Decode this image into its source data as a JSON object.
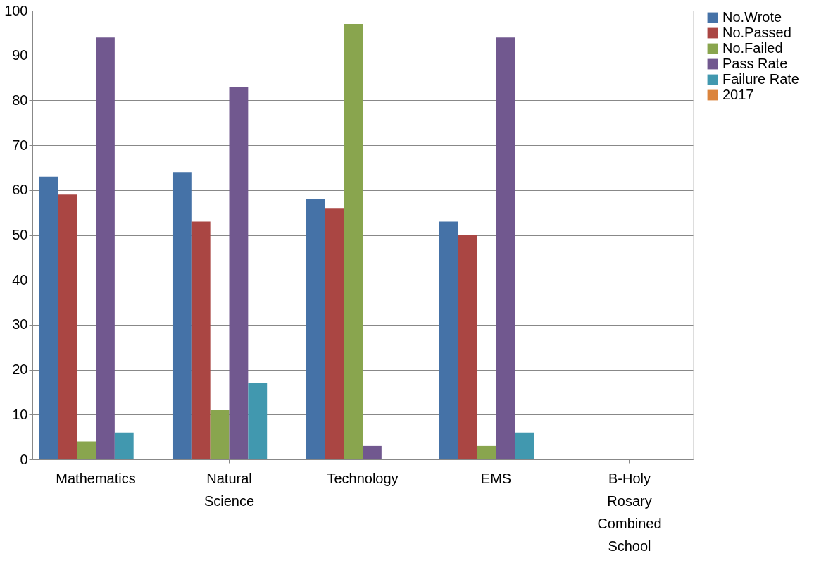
{
  "chart_data": {
    "type": "bar",
    "categories": [
      "Mathematics",
      "Natural Science",
      "Technology",
      "EMS",
      "B-Holy Rosary Combined School"
    ],
    "series": [
      {
        "name": "No.Wrote",
        "color": "#4572a7",
        "values": [
          63,
          64,
          58,
          53,
          null
        ]
      },
      {
        "name": "No.Passed",
        "color": "#aa4643",
        "values": [
          59,
          53,
          56,
          50,
          null
        ]
      },
      {
        "name": "No.Failed",
        "color": "#89a54e",
        "values": [
          4,
          11,
          97,
          3,
          null
        ]
      },
      {
        "name": "Pass Rate",
        "color": "#71588f",
        "values": [
          94,
          83,
          3,
          94,
          null
        ]
      },
      {
        "name": "Failure Rate",
        "color": "#4198af",
        "values": [
          6,
          17,
          null,
          6,
          null
        ]
      },
      {
        "name": "2017",
        "color": "#db843d",
        "values": [
          null,
          null,
          null,
          null,
          null
        ]
      }
    ],
    "ylim": [
      0,
      100
    ],
    "yticks": [
      0,
      10,
      20,
      30,
      40,
      50,
      60,
      70,
      80,
      90,
      100
    ],
    "grid": "y",
    "legend": "right"
  }
}
